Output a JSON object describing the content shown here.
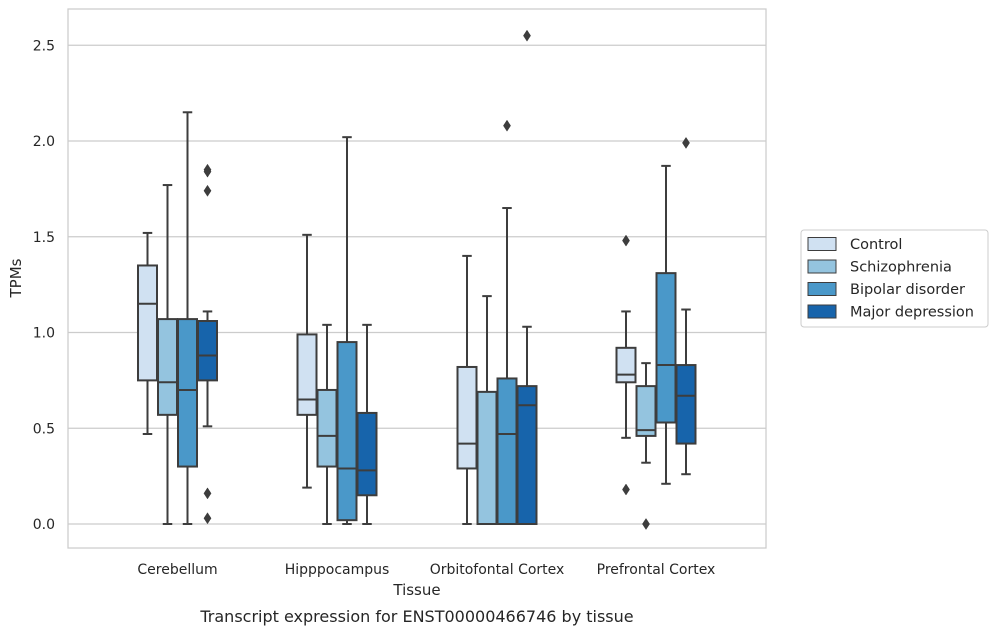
{
  "chart_data": {
    "type": "boxplot",
    "xlabel": "Tissue",
    "ylabel": "TPMs",
    "caption": "Transcript expression for ENST00000466746 by tissue",
    "ylim": [
      -0.12,
      2.68
    ],
    "yticks": [
      "0.0",
      "0.5",
      "1.0",
      "1.5",
      "2.0",
      "2.5"
    ],
    "ytick_values": [
      0.0,
      0.5,
      1.0,
      1.5,
      2.0,
      2.5
    ],
    "grid": "horizontal",
    "legend_position": "right",
    "categories": [
      "Cerebellum",
      "Hipppocampus",
      "Orbitofontal Cortex",
      "Prefrontal Cortex"
    ],
    "series": [
      {
        "name": "Control",
        "color": "#d0e1f2",
        "boxes": [
          {
            "q1": 0.75,
            "median": 1.15,
            "q3": 1.35,
            "whislo": 0.47,
            "whishi": 1.52,
            "fliers": []
          },
          {
            "q1": 0.57,
            "median": 0.65,
            "q3": 0.99,
            "whislo": 0.19,
            "whishi": 1.51,
            "fliers": []
          },
          {
            "q1": 0.29,
            "median": 0.42,
            "q3": 0.82,
            "whislo": 0.0,
            "whishi": 1.4,
            "fliers": []
          },
          {
            "q1": 0.74,
            "median": 0.78,
            "q3": 0.92,
            "whislo": 0.45,
            "whishi": 1.11,
            "fliers": [
              1.48,
              0.18
            ]
          }
        ]
      },
      {
        "name": "Schizophrenia",
        "color": "#94c4df",
        "boxes": [
          {
            "q1": 0.57,
            "median": 0.74,
            "q3": 1.07,
            "whislo": 0.0,
            "whishi": 1.77,
            "fliers": []
          },
          {
            "q1": 0.3,
            "median": 0.46,
            "q3": 0.7,
            "whislo": 0.0,
            "whishi": 1.04,
            "fliers": []
          },
          {
            "q1": 0.0,
            "median": 0.0,
            "q3": 0.69,
            "whislo": 0.0,
            "whishi": 1.19,
            "fliers": []
          },
          {
            "q1": 0.46,
            "median": 0.49,
            "q3": 0.72,
            "whislo": 0.32,
            "whishi": 0.84,
            "fliers": [
              0.0
            ]
          }
        ]
      },
      {
        "name": "Bipolar disorder",
        "color": "#4a98c9",
        "boxes": [
          {
            "q1": 0.3,
            "median": 0.7,
            "q3": 1.07,
            "whislo": 0.0,
            "whishi": 2.15,
            "fliers": []
          },
          {
            "q1": 0.02,
            "median": 0.29,
            "q3": 0.95,
            "whislo": 0.0,
            "whishi": 2.02,
            "fliers": []
          },
          {
            "q1": 0.0,
            "median": 0.47,
            "q3": 0.76,
            "whislo": 0.0,
            "whishi": 1.65,
            "fliers": [
              2.08
            ]
          },
          {
            "q1": 0.53,
            "median": 0.83,
            "q3": 1.31,
            "whislo": 0.21,
            "whishi": 1.87,
            "fliers": []
          }
        ]
      },
      {
        "name": "Major depression",
        "color": "#1764ab",
        "boxes": [
          {
            "q1": 0.75,
            "median": 0.88,
            "q3": 1.06,
            "whislo": 0.51,
            "whishi": 1.11,
            "fliers": [
              1.85,
              1.84,
              1.74,
              0.16,
              0.03
            ]
          },
          {
            "q1": 0.15,
            "median": 0.28,
            "q3": 0.58,
            "whislo": 0.0,
            "whishi": 1.04,
            "fliers": []
          },
          {
            "q1": 0.0,
            "median": 0.62,
            "q3": 0.72,
            "whislo": 0.0,
            "whishi": 1.03,
            "fliers": [
              2.55
            ]
          },
          {
            "q1": 0.42,
            "median": 0.67,
            "q3": 0.83,
            "whislo": 0.26,
            "whishi": 1.12,
            "fliers": [
              1.99
            ]
          }
        ]
      }
    ]
  }
}
